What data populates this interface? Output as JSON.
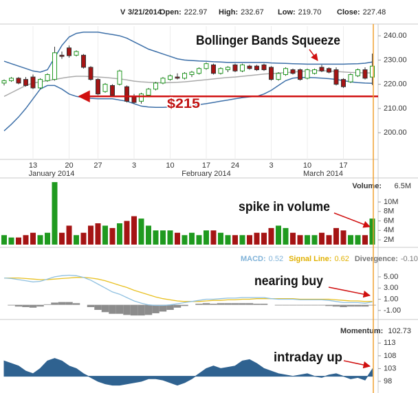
{
  "header": {
    "symbol": "V",
    "date": "3/21/2014",
    "fields": [
      {
        "label": "Open:",
        "value": 222.97
      },
      {
        "label": "High:",
        "value": 232.67
      },
      {
        "label": "Low:",
        "value": 219.7,
        "value_label": "219.70"
      },
      {
        "label": "Close:",
        "value": 227.48
      }
    ]
  },
  "chart_data": [
    {
      "type": "candlestick",
      "categories": [
        null,
        null,
        null,
        null,
        "13",
        null,
        null,
        null,
        null,
        "20",
        null,
        null,
        null,
        "27",
        null,
        null,
        null,
        null,
        "3",
        null,
        null,
        null,
        null,
        "10",
        null,
        null,
        null,
        null,
        "17",
        null,
        null,
        null,
        "24",
        null,
        null,
        null,
        null,
        "3",
        null,
        null,
        null,
        null,
        "10",
        null,
        null,
        null,
        null,
        "17",
        null,
        null,
        null,
        null
      ],
      "month_labels": [
        "January 2014",
        "February 2014",
        "March 2014"
      ],
      "open": [
        220.5,
        221.5,
        222.5,
        222,
        223,
        218.5,
        221.5,
        222,
        232,
        235,
        232,
        232,
        227,
        222,
        217,
        219.5,
        220,
        219,
        215,
        213,
        215.5,
        218,
        220.5,
        222,
        223,
        222.5,
        224,
        224.5,
        226.5,
        228,
        224.5,
        226,
        228,
        225.5,
        227.5,
        227.5,
        228,
        227,
        222,
        224,
        226,
        226,
        222.5,
        224.5,
        227,
        226.5,
        226,
        222,
        221,
        223.5,
        226,
        222.97
      ],
      "high": [
        222,
        223,
        223,
        223,
        224,
        222.5,
        224.5,
        235.5,
        233.5,
        236,
        234,
        232.5,
        227.5,
        222.5,
        220.5,
        220,
        226,
        219.5,
        216,
        216.5,
        218.5,
        221,
        223,
        224,
        224.5,
        225,
        225.5,
        227,
        229,
        228.5,
        227,
        227.5,
        228.5,
        228.5,
        228,
        228,
        228.5,
        227.5,
        225,
        227,
        226.5,
        226.5,
        226.5,
        226.5,
        228,
        227,
        227,
        222.5,
        224.5,
        226.5,
        227,
        232.67
      ],
      "low": [
        219.5,
        221,
        220,
        219,
        218,
        218,
        221,
        221.5,
        230.5,
        231,
        231.5,
        226.5,
        221.5,
        215.5,
        216.5,
        215,
        219.5,
        212.5,
        212,
        212,
        215,
        217.5,
        220,
        221.5,
        222,
        222,
        223,
        224,
        226,
        224,
        224,
        225,
        225,
        225,
        226,
        225.5,
        225.5,
        221.5,
        221.5,
        223.5,
        224,
        221.5,
        222,
        224,
        225,
        224.5,
        219.5,
        218.5,
        220.5,
        223,
        222,
        219.7
      ],
      "close": [
        221.5,
        222.5,
        220.5,
        219.5,
        218.5,
        222,
        224,
        233,
        231.5,
        231.8,
        233.5,
        227,
        222,
        216,
        220,
        215.5,
        225.5,
        213,
        212.5,
        216,
        218,
        220.5,
        222.5,
        223.5,
        222.5,
        224.5,
        225,
        226.5,
        228.5,
        224.5,
        226.5,
        227,
        225.5,
        228,
        226.5,
        226,
        226,
        222,
        224.5,
        226.5,
        224.5,
        222,
        226,
        226,
        225.5,
        225,
        220,
        219,
        224,
        226,
        222.5,
        227.48
      ],
      "up_color": "#1f9a1f",
      "down_color": "#a51414",
      "series": [
        {
          "color": "#3c6fa8",
          "values": [
            229.5,
            228.5,
            227.5,
            226.5,
            225.5,
            225,
            226,
            231,
            236,
            239.5,
            241,
            241.5,
            241.5,
            241.5,
            241,
            240.5,
            240,
            239,
            237.5,
            236,
            234.5,
            233.5,
            232.5,
            231.5,
            230.5,
            230,
            229.8,
            229.6,
            229.5,
            229.3,
            229.2,
            229,
            229,
            229,
            229,
            229,
            229,
            228.8,
            228.7,
            228.6,
            228.5,
            228.4,
            228.3,
            228.3,
            228.3,
            228.3,
            228.3,
            228.3,
            228.4,
            228.5,
            228.7,
            229.2
          ]
        },
        {
          "color": "#aaaaaa",
          "values": [
            215,
            216.5,
            218,
            219.5,
            220.5,
            221,
            221.5,
            222,
            222.5,
            223,
            223.3,
            223.3,
            223.2,
            223,
            222.8,
            222.5,
            222.2,
            221.8,
            221.3,
            221,
            220.8,
            220.7,
            220.6,
            220.7,
            220.8,
            221,
            221.3,
            221.6,
            221.9,
            222.2,
            222.5,
            222.8,
            223,
            223.3,
            223.6,
            223.9,
            224.2,
            224.4,
            224.6,
            224.8,
            225,
            225.3,
            225.5,
            225.6,
            225.6,
            225.5,
            225.3,
            225.1,
            224.9,
            224.8,
            224.7,
            224.7
          ]
        },
        {
          "color": "#3c6fa8",
          "values": [
            200.8,
            203.5,
            206.5,
            210,
            214,
            218,
            219.5,
            219.5,
            218,
            216,
            215,
            214.5,
            214.2,
            214,
            214,
            214,
            213.5,
            213,
            212,
            211,
            210.6,
            210.5,
            210.5,
            210.6,
            210.8,
            211,
            211.3,
            211.6,
            212,
            212.5,
            213,
            213.5,
            214,
            214.5,
            214.8,
            215,
            216,
            217.5,
            219.5,
            221.5,
            222.5,
            222.8,
            222.8,
            222.7,
            222.5,
            222.3,
            222,
            221.5,
            221,
            220.7,
            220.5,
            220.4
          ]
        }
      ],
      "ylim": [
        189,
        244
      ],
      "yticks": [
        {
          "value": 200,
          "label": "200.00"
        },
        {
          "value": 210,
          "label": "210.00"
        },
        {
          "value": 220,
          "label": "220.00"
        },
        {
          "value": 230,
          "label": "230.00"
        },
        {
          "value": 240,
          "label": "240.00"
        }
      ],
      "annotations": [
        {
          "text": "Bollinger Bands Squeeze"
        },
        {
          "text": "$215",
          "value": 215
        }
      ]
    },
    {
      "type": "bar",
      "readout": {
        "label": "Volume:",
        "value": 6.5,
        "value_label": "6.5M"
      },
      "values": [
        3,
        2.5,
        2.5,
        3,
        3.5,
        3,
        3.5,
        14.2,
        3.5,
        5,
        3,
        3.5,
        5,
        5.5,
        5,
        4.5,
        5.5,
        6,
        7,
        6.5,
        5,
        4,
        4,
        4,
        3.5,
        3,
        3.5,
        3,
        4,
        4,
        3.5,
        3,
        3,
        3,
        3,
        3.5,
        3.5,
        4.5,
        5,
        4.5,
        3.5,
        3,
        3,
        3,
        3.5,
        3,
        4.5,
        4,
        3,
        3,
        3,
        6.5
      ],
      "up_color": "#1f9a1f",
      "down_color": "#a51414",
      "ylim": [
        1,
        14.5
      ],
      "yticks": [
        {
          "value": 2,
          "label": "2M"
        },
        {
          "value": 4,
          "label": "4M"
        },
        {
          "value": 6,
          "label": "6M"
        },
        {
          "value": 8,
          "label": "8M"
        },
        {
          "value": 10,
          "label": "10M"
        }
      ],
      "annotations": [
        {
          "text": "spike in volume"
        }
      ]
    },
    {
      "type": "line",
      "readouts": [
        {
          "label": "MACD:",
          "value": 0.52,
          "color": "#7fb2d8"
        },
        {
          "label": "Signal Line:",
          "value": 0.62,
          "color": "#e0b000"
        },
        {
          "label": "Divergence:",
          "value": -0.1,
          "value_label": "-0.10",
          "color": "#777777"
        }
      ],
      "series": [
        {
          "style": "bar",
          "color": "#8c8c8c",
          "values": [
            0,
            -0.1,
            -0.3,
            -0.4,
            -0.5,
            -0.3,
            0.1,
            0.4,
            0.5,
            0.5,
            0.3,
            0,
            -0.4,
            -0.9,
            -1.3,
            -1.6,
            -1.6,
            -1.8,
            -1.9,
            -1.9,
            -1.8,
            -1.5,
            -1.2,
            -0.9,
            -0.5,
            -0.2,
            0,
            0.2,
            0.3,
            0.2,
            0.3,
            0.3,
            0.3,
            0.3,
            0.3,
            0.2,
            0.2,
            0,
            -0.1,
            -0.1,
            -0.1,
            -0.1,
            -0.1,
            -0.1,
            -0.1,
            -0.2,
            -0.3,
            -0.4,
            -0.3,
            -0.3,
            -0.3,
            -0.1
          ]
        },
        {
          "style": "line",
          "color": "#e8c020",
          "values": [
            4.8,
            4.8,
            4.8,
            4.7,
            4.6,
            4.5,
            4.5,
            4.6,
            4.7,
            4.8,
            4.9,
            4.9,
            4.8,
            4.6,
            4.3,
            3.9,
            3.5,
            3.1,
            2.6,
            2.2,
            1.8,
            1.4,
            1.1,
            0.9,
            0.7,
            0.6,
            0.6,
            0.6,
            0.7,
            0.8,
            0.8,
            0.9,
            0.9,
            1,
            1,
            1.1,
            1.1,
            1.1,
            1.1,
            1.1,
            1.1,
            1,
            1,
            1,
            1,
            1,
            0.9,
            0.8,
            0.7,
            0.7,
            0.6,
            0.62
          ]
        },
        {
          "style": "line",
          "color": "#8fc0e0",
          "values": [
            4.8,
            4.7,
            4.5,
            4.3,
            4.1,
            4.2,
            4.6,
            5,
            5.2,
            5.3,
            5.2,
            4.9,
            4.4,
            3.7,
            3,
            2.3,
            1.9,
            1.3,
            0.7,
            0.3,
            0,
            -0.1,
            -0.1,
            0,
            0.2,
            0.4,
            0.6,
            0.8,
            1,
            1,
            1.1,
            1.2,
            1.2,
            1.3,
            1.3,
            1.3,
            1.3,
            1.1,
            1,
            1,
            1,
            0.9,
            0.9,
            0.9,
            0.9,
            0.8,
            0.6,
            0.4,
            0.4,
            0.4,
            0.3,
            0.52
          ]
        }
      ],
      "ylim": [
        -2,
        7.2
      ],
      "yticks": [
        {
          "value": -1,
          "label": "-1.00"
        },
        {
          "value": 1,
          "label": "1.00"
        },
        {
          "value": 3,
          "label": "3.00"
        },
        {
          "value": 5,
          "label": "5.00"
        }
      ],
      "annotations": [
        {
          "text": "nearing buy"
        }
      ]
    },
    {
      "type": "area",
      "readout": {
        "label": "Momentum:",
        "value": 102.73
      },
      "baseline": 100,
      "color": "#2f6290",
      "values": [
        106,
        105,
        104,
        102,
        101,
        103,
        106,
        107,
        106,
        104,
        103,
        101,
        99.5,
        98,
        97,
        96.5,
        96.5,
        97,
        97.5,
        98,
        99,
        99,
        98.5,
        97.5,
        96.5,
        97.5,
        99,
        101,
        103,
        104,
        103,
        103.5,
        104,
        106,
        106.5,
        105,
        103,
        102,
        101,
        100.5,
        100,
        100.5,
        101,
        100,
        99.5,
        100.5,
        101,
        100,
        99,
        99.5,
        98.5,
        102.73
      ],
      "ylim": [
        94.5,
        115.5
      ],
      "yticks": [
        98,
        103,
        108,
        113
      ],
      "annotations": [
        {
          "text": "intraday up"
        }
      ]
    }
  ]
}
